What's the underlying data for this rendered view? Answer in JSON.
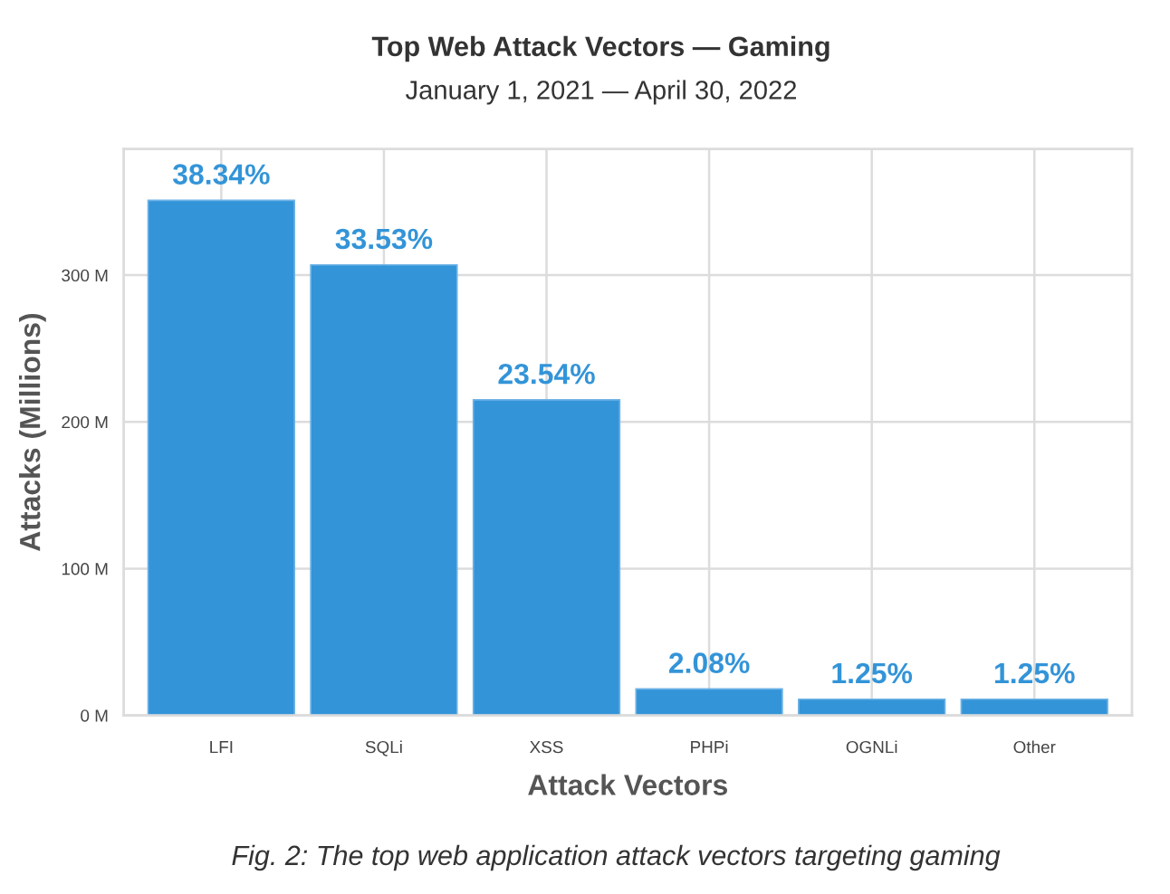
{
  "chart_data": {
    "type": "bar",
    "title": "Top Web Attack Vectors — Gaming",
    "subtitle": "January 1, 2021 — April 30, 2022",
    "xlabel": "Attack Vectors",
    "ylabel": "Attacks (Millions)",
    "annotations": [
      {
        "text": "38.34%",
        "x": "LFI",
        "y": 351
      },
      {
        "text": "33.53%",
        "x": "SQLi",
        "y": 307
      },
      {
        "text": "23.54%",
        "x": "XSS",
        "y": 215
      },
      {
        "text": "2.08%",
        "x": "PHPi",
        "y": 18
      },
      {
        "text": "1.25%",
        "x": "OGNLi",
        "y": 11
      },
      {
        "text": "1.25%",
        "x": "Other",
        "y": 11
      },
      "Fig. 2: The top web application attack vectors targeting gaming"
    ],
    "categories": [
      "LFI",
      "SQLi",
      "XSS",
      "PHPi",
      "OGNLi",
      "Other"
    ],
    "values": [
      351,
      307,
      215,
      18,
      11,
      11
    ],
    "color": "#3394d8",
    "ylim": [
      0,
      386
    ],
    "yticks": [
      {
        "value": 0,
        "label": "0 M"
      },
      {
        "value": 100,
        "label": "100 M"
      },
      {
        "value": 200,
        "label": "200 M"
      },
      {
        "value": 300,
        "label": "300 M"
      }
    ],
    "grid": true
  }
}
